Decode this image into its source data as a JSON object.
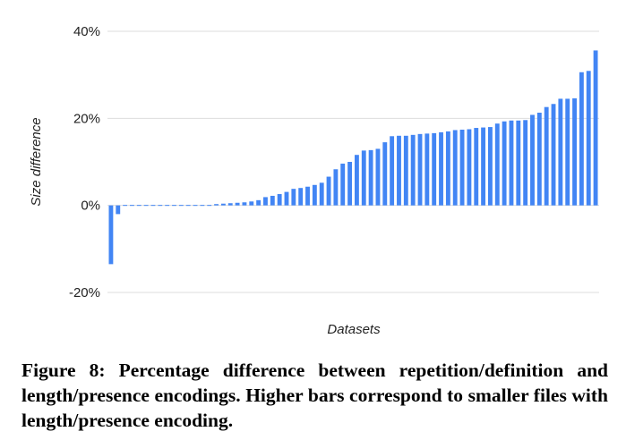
{
  "caption": "Figure 8:  Percentage difference between repetition/definition and length/presence encodings.  Higher bars correspond to smaller files with length/presence encoding.",
  "chart_data": {
    "type": "bar",
    "xlabel": "Datasets",
    "ylabel": "Size difference",
    "y_ticks": [
      "40%",
      "20%",
      "0%",
      "-20%"
    ],
    "y_tick_values": [
      40,
      20,
      0,
      -20
    ],
    "ylim": [
      -20,
      40
    ],
    "grid": "horizontal",
    "bar_color": "#4285f4",
    "grid_color": "#dddddd",
    "values": [
      -13.5,
      -2.0,
      -0.2,
      -0.1,
      0,
      0,
      0,
      0,
      0,
      0,
      0,
      0,
      0,
      0.1,
      0.2,
      0.3,
      0.4,
      0.5,
      0.6,
      0.7,
      0.9,
      1.2,
      1.9,
      2.2,
      2.6,
      3.1,
      3.8,
      4.0,
      4.3,
      4.7,
      5.2,
      6.6,
      8.3,
      9.6,
      10.0,
      11.6,
      12.6,
      12.7,
      13.0,
      14.5,
      15.9,
      16.0,
      16.0,
      16.2,
      16.4,
      16.5,
      16.6,
      16.8,
      17.0,
      17.3,
      17.4,
      17.5,
      17.8,
      17.9,
      18.0,
      18.8,
      19.3,
      19.5,
      19.5,
      19.6,
      20.8,
      21.3,
      22.6,
      23.3,
      24.5,
      24.5,
      24.6,
      30.6,
      30.9,
      35.6
    ]
  }
}
